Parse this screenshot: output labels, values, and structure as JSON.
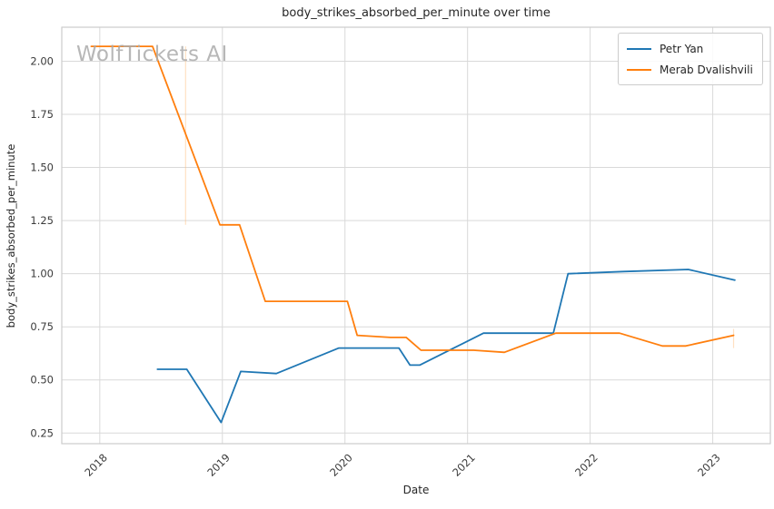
{
  "watermark": "WolfTickets AI",
  "chart_data": {
    "type": "line",
    "title": "body_strikes_absorbed_per_minute over time",
    "xlabel": "Date",
    "ylabel": "body_strikes_absorbed_per_minute",
    "xlim": [
      2017.69,
      2023.47
    ],
    "ylim": [
      0.2,
      2.16
    ],
    "x_ticks": [
      2018,
      2019,
      2020,
      2021,
      2022,
      2023
    ],
    "y_ticks": [
      0.25,
      0.5,
      0.75,
      1.0,
      1.25,
      1.5,
      1.75,
      2.0
    ],
    "grid": true,
    "legend_position": "upper right",
    "colors": {
      "grid": "#d9d9d9",
      "spine": "#cccccc",
      "tick_label": "#3b3b3b"
    },
    "series": [
      {
        "name": "Petr Yan",
        "color": "#1f77b4",
        "points": [
          [
            2018.47,
            0.55
          ],
          [
            2018.71,
            0.55
          ],
          [
            2018.99,
            0.3
          ],
          [
            2019.15,
            0.54
          ],
          [
            2019.44,
            0.53
          ],
          [
            2019.95,
            0.65
          ],
          [
            2020.44,
            0.65
          ],
          [
            2020.53,
            0.57
          ],
          [
            2020.61,
            0.57
          ],
          [
            2021.13,
            0.72
          ],
          [
            2021.7,
            0.72
          ],
          [
            2021.82,
            1.0
          ],
          [
            2022.27,
            1.01
          ],
          [
            2022.8,
            1.02
          ],
          [
            2023.18,
            0.97
          ]
        ]
      },
      {
        "name": "Merab Dvalishvili",
        "color": "#ff7f0e",
        "points": [
          [
            2017.93,
            2.07
          ],
          [
            2018.43,
            2.07
          ],
          [
            2018.98,
            1.23
          ],
          [
            2019.14,
            1.23
          ],
          [
            2019.35,
            0.87
          ],
          [
            2020.02,
            0.87
          ],
          [
            2020.1,
            0.71
          ],
          [
            2020.37,
            0.7
          ],
          [
            2020.5,
            0.7
          ],
          [
            2020.62,
            0.64
          ],
          [
            2021.05,
            0.64
          ],
          [
            2021.3,
            0.63
          ],
          [
            2021.72,
            0.72
          ],
          [
            2022.24,
            0.72
          ],
          [
            2022.59,
            0.66
          ],
          [
            2022.78,
            0.66
          ],
          [
            2023.17,
            0.71
          ]
        ]
      }
    ],
    "event_markers": [
      {
        "x": 2018.7,
        "y_from": 1.23,
        "y_to": 2.07,
        "color": "#ffbb78"
      },
      {
        "x": 2023.17,
        "y_from": 0.65,
        "y_to": 0.74,
        "color": "#ffbb78"
      }
    ]
  }
}
